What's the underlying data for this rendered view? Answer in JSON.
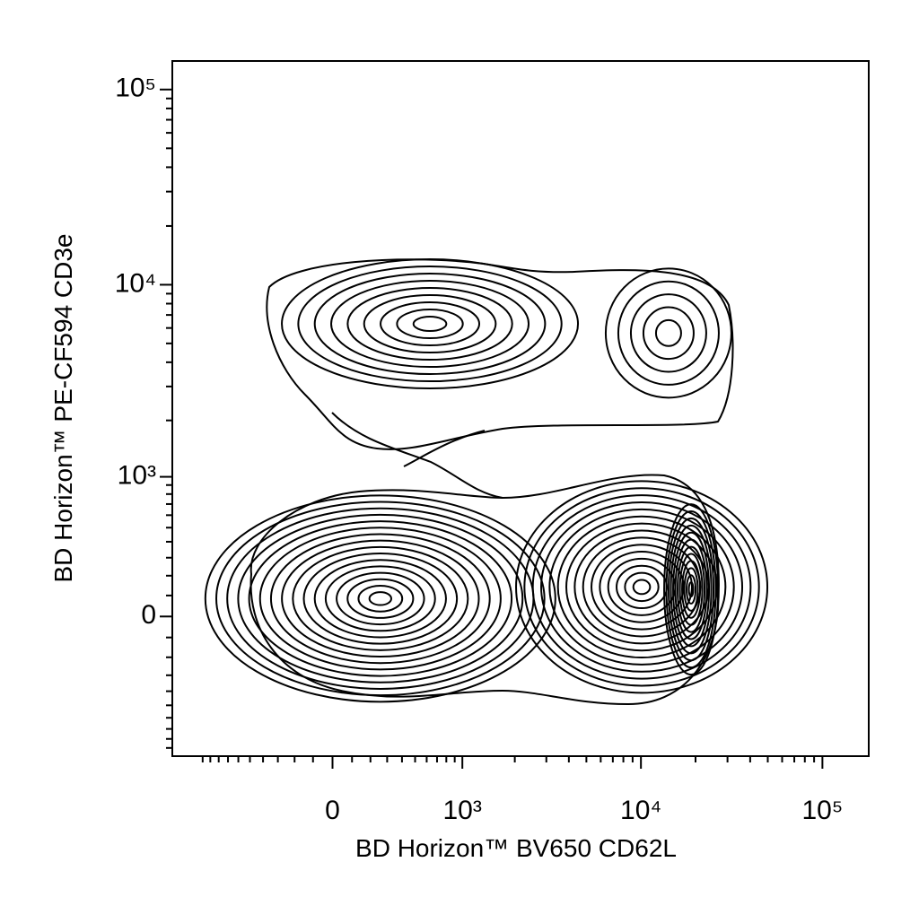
{
  "chart_data": {
    "type": "contour",
    "x_label": "BD Horizon™ BV650 CD62L",
    "y_label": "BD Horizon™ PE-CF594 CD3e",
    "xlim": [
      -1500,
      180000
    ],
    "ylim": [
      -1000,
      140000
    ],
    "xticks": [
      0,
      {
        "value": 1000,
        "label": "10³"
      },
      {
        "value": 10000,
        "label": "10⁴"
      },
      {
        "value": 100000,
        "label": "10⁵"
      }
    ],
    "yticks": [
      0,
      {
        "value": 1000,
        "label": "10³"
      },
      {
        "value": 10000,
        "label": "10⁴"
      },
      {
        "value": 100000,
        "label": "10⁵"
      }
    ],
    "xticks_minor": [
      -1000,
      -900,
      -800,
      -700,
      -600,
      -500,
      -400,
      -300,
      -200,
      -100,
      100,
      200,
      300,
      400,
      500,
      600,
      700,
      800,
      900,
      2000,
      3000,
      4000,
      5000,
      6000,
      7000,
      8000,
      9000,
      20000,
      30000,
      40000,
      50000,
      60000,
      70000,
      80000,
      90000
    ],
    "yticks_minor": [
      -900,
      -800,
      -700,
      -600,
      -500,
      -400,
      -300,
      -200,
      -100,
      100,
      200,
      300,
      400,
      500,
      600,
      700,
      800,
      900,
      2000,
      3000,
      4000,
      5000,
      6000,
      7000,
      8000,
      9000,
      20000,
      30000,
      40000,
      50000,
      60000,
      70000,
      80000,
      90000
    ],
    "populations": [
      {
        "x": 630,
        "y": 6300
      },
      {
        "x": 14200,
        "y": 5650
      },
      {
        "x": 258,
        "y": 85
      },
      {
        "x": 10100,
        "y": 142
      },
      {
        "x": 18900,
        "y": 130
      }
    ]
  }
}
